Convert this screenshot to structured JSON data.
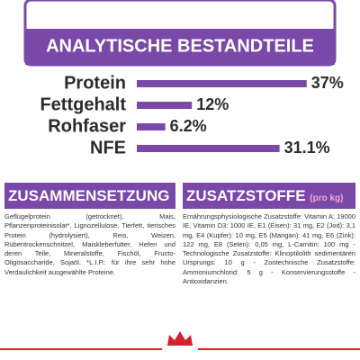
{
  "chart_data": {
    "type": "bar",
    "title": "ANALYTISCHE BESTANDTEILE",
    "categories": [
      "Protein",
      "Fettgehalt",
      "Rohfaser",
      "NFE"
    ],
    "values": [
      37,
      12,
      6.2,
      31.1
    ],
    "value_labels": [
      "37%",
      "12%",
      "6.2%",
      "31.1%"
    ],
    "color": "#7a48a8"
  },
  "composition": {
    "title": "ZUSAMMENSETZUNG",
    "text": "Geflügelprotein (getrocknet), Mais, Pflanzenproteinisolat*, Lignozellulose, Tierfett, tierisches Protein (hydrolysiert), Reis, Weizen, Rübentrockenschnitzel, Maiskleberfutter, Hefen und deren Teile, Mineralstoffe, Fischöl, Fructo-Oligosaccharide, Sojaöl. *L.I.P.: für ihre sehr hohe Verdaulichkeit ausgewählte Proteine."
  },
  "additives": {
    "title": "ZUSATZSTOFFE",
    "unit": "(pro kg)",
    "text": "Ernährungsphysiologische Zusatzstoffe: Vitamin A: 19000 IE, Vitamin D3: 1000 IE, E1 (Eisen): 31 mg, E2 (Jod): 3,1 mg, E4 (Kupfer): 10 mg, E5 (Mangan): 41 mg, E6 (Zink): 122 mg, E8 (Selen): 0,05 mg, L-Carnitin: 100 mg - Technologische Zusatzstoffe: Klinoptilolith sedimentären Ursprungs: 10 g - Zootechnische Zusatzstoffe: Ammoniumchlorid: 5 g - Konservierungsstoffe - Antioxidanzien."
  }
}
